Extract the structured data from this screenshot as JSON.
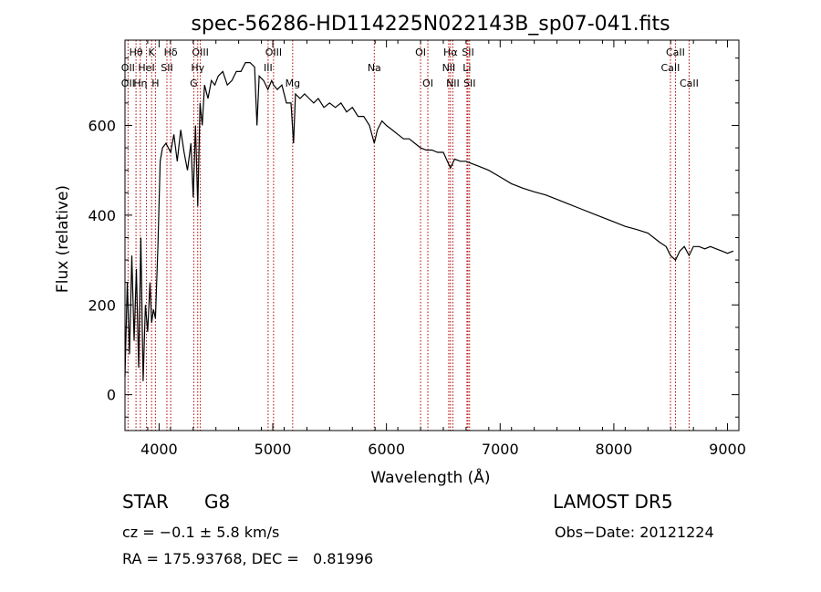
{
  "chart_data": {
    "type": "line",
    "title": "spec-56286-HD114225N022143B_sp07-041.fits",
    "xlabel": "Wavelength (Å)",
    "ylabel": "Flux (relative)",
    "xlim": [
      3700,
      9100
    ],
    "ylim": [
      -80,
      790
    ],
    "x_ticks": [
      4000,
      5000,
      6000,
      7000,
      8000,
      9000
    ],
    "y_ticks": [
      0,
      200,
      400,
      600
    ],
    "grid": false,
    "series": [
      {
        "x": [
          3700,
          3720,
          3740,
          3760,
          3780,
          3800,
          3820,
          3840,
          3860,
          3880,
          3900,
          3920,
          3934,
          3950,
          3968,
          3990,
          4010,
          4030,
          4060,
          4102,
          4130,
          4160,
          4190,
          4220,
          4250,
          4280,
          4300,
          4320,
          4340,
          4360,
          4380,
          4400,
          4430,
          4460,
          4490,
          4520,
          4560,
          4600,
          4640,
          4680,
          4720,
          4760,
          4800,
          4840,
          4861,
          4880,
          4920,
          4957,
          4990,
          5007,
          5040,
          5080,
          5120,
          5160,
          5183,
          5200,
          5240,
          5280,
          5320,
          5360,
          5400,
          5450,
          5500,
          5550,
          5600,
          5650,
          5700,
          5750,
          5800,
          5850,
          5893,
          5920,
          5960,
          6000,
          6050,
          6100,
          6150,
          6200,
          6250,
          6300,
          6350,
          6400,
          6450,
          6500,
          6563,
          6600,
          6650,
          6700,
          6750,
          6800,
          6900,
          7000,
          7100,
          7200,
          7300,
          7400,
          7500,
          7600,
          7700,
          7800,
          7900,
          8000,
          8100,
          8200,
          8300,
          8400,
          8460,
          8498,
          8542,
          8580,
          8620,
          8662,
          8700,
          8750,
          8800,
          8850,
          8900,
          8950,
          9000,
          9050
        ],
        "y": [
          40,
          250,
          90,
          310,
          120,
          280,
          60,
          350,
          30,
          200,
          140,
          250,
          160,
          190,
          170,
          330,
          520,
          550,
          560,
          540,
          580,
          520,
          590,
          540,
          500,
          560,
          440,
          600,
          420,
          650,
          600,
          690,
          660,
          700,
          690,
          710,
          720,
          690,
          700,
          720,
          720,
          740,
          740,
          730,
          600,
          710,
          700,
          680,
          700,
          690,
          680,
          690,
          650,
          650,
          560,
          670,
          660,
          670,
          660,
          650,
          660,
          640,
          650,
          640,
          650,
          630,
          640,
          620,
          620,
          600,
          560,
          590,
          610,
          600,
          590,
          580,
          570,
          570,
          560,
          550,
          545,
          545,
          540,
          540,
          505,
          525,
          520,
          520,
          515,
          510,
          500,
          485,
          470,
          460,
          452,
          445,
          435,
          425,
          415,
          405,
          395,
          385,
          375,
          368,
          360,
          340,
          330,
          310,
          300,
          320,
          330,
          310,
          330,
          330,
          325,
          330,
          325,
          320,
          315,
          320
        ]
      }
    ],
    "line_markers": [
      {
        "label": "Hθ",
        "x": 3797
      },
      {
        "label": "K",
        "x": 3934
      },
      {
        "label": "Hδ",
        "x": 4102
      },
      {
        "label": "OII",
        "x": 3727
      },
      {
        "label": "HeI",
        "x": 3889
      },
      {
        "label": "SII",
        "x": 4069
      },
      {
        "label": "OII",
        "x": 3727
      },
      {
        "label": "Hη",
        "x": 3835
      },
      {
        "label": "H",
        "x": 3968
      },
      {
        "label": "OIII",
        "x": 4363
      },
      {
        "label": "Hγ",
        "x": 4340
      },
      {
        "label": "G",
        "x": 4305
      },
      {
        "label": "OIII",
        "x": 5007
      },
      {
        "label": "III",
        "x": 4959
      },
      {
        "label": "Mg",
        "x": 5175
      },
      {
        "label": "Na",
        "x": 5893
      },
      {
        "label": "OI",
        "x": 6300
      },
      {
        "label": "OI",
        "x": 6364
      },
      {
        "label": "Hα",
        "x": 6563
      },
      {
        "label": "SII",
        "x": 6717
      },
      {
        "label": "NII",
        "x": 6548
      },
      {
        "label": "Li",
        "x": 6708
      },
      {
        "label": "NII",
        "x": 6584
      },
      {
        "label": "SII",
        "x": 6731
      },
      {
        "label": "CaII",
        "x": 8542
      },
      {
        "label": "CaII",
        "x": 8498
      },
      {
        "label": "CaII",
        "x": 8662
      }
    ]
  },
  "info": {
    "obj_class": "STAR",
    "obj_subclass": "G8",
    "survey": "LAMOST DR5",
    "cz": "cz = −0.1 ± 5.8 km/s",
    "obs_date": "Obs−Date: 20121224",
    "radec": "RA = 175.93768, DEC =   0.81996"
  }
}
